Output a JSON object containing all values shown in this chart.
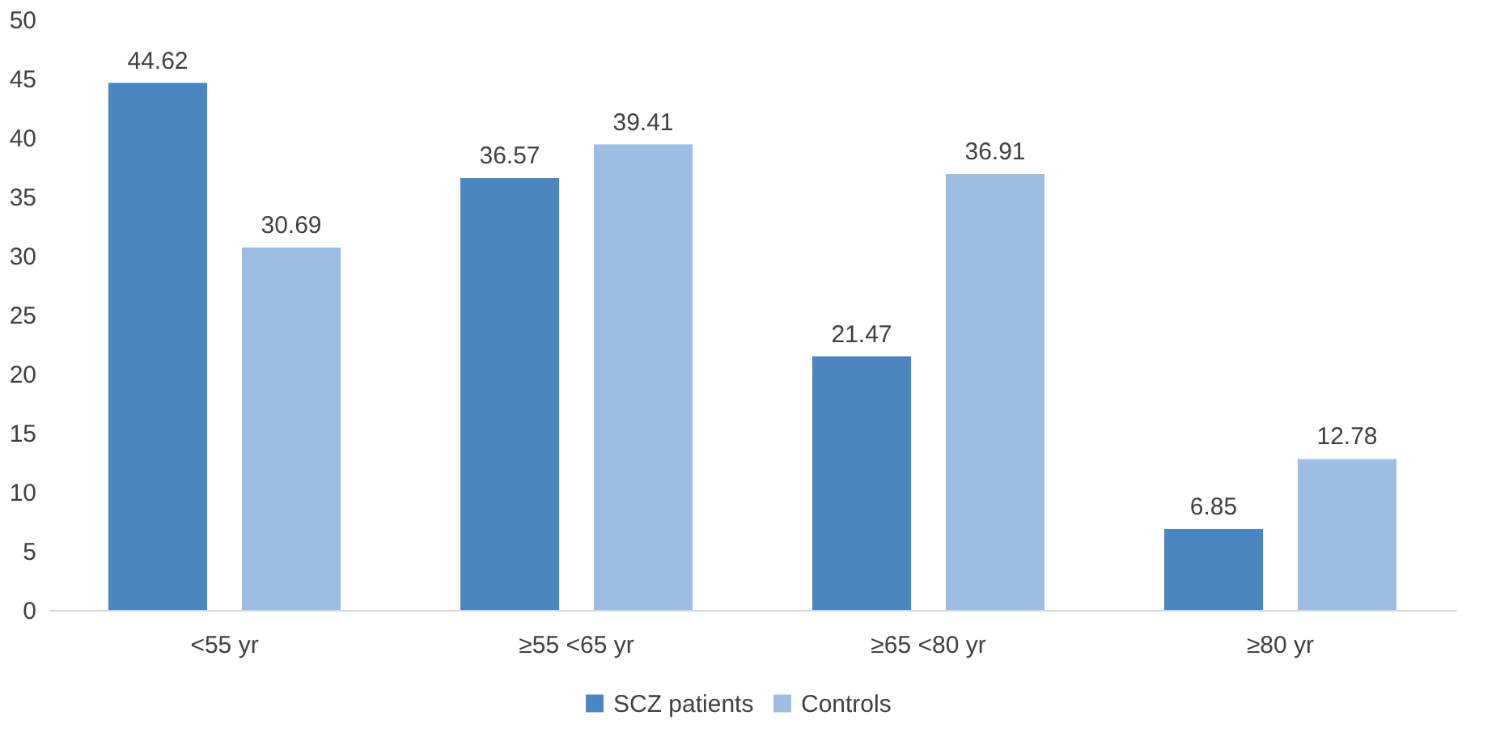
{
  "chart_data": {
    "type": "bar",
    "categories": [
      "<55 yr",
      "≥55 <65 yr",
      "≥65 <80 yr",
      "≥80 yr"
    ],
    "series": [
      {
        "name": "SCZ patients",
        "color": "#4a86c0",
        "values": [
          44.62,
          36.57,
          21.47,
          6.85
        ]
      },
      {
        "name": "Controls",
        "color": "#9dbde2",
        "values": [
          30.69,
          39.41,
          36.91,
          12.78
        ]
      }
    ],
    "ylim": [
      0,
      50
    ],
    "yticks": [
      0,
      5,
      10,
      15,
      20,
      25,
      30,
      35,
      40,
      45,
      50
    ],
    "grid": false,
    "legend": "bottom",
    "data_labels": true
  }
}
